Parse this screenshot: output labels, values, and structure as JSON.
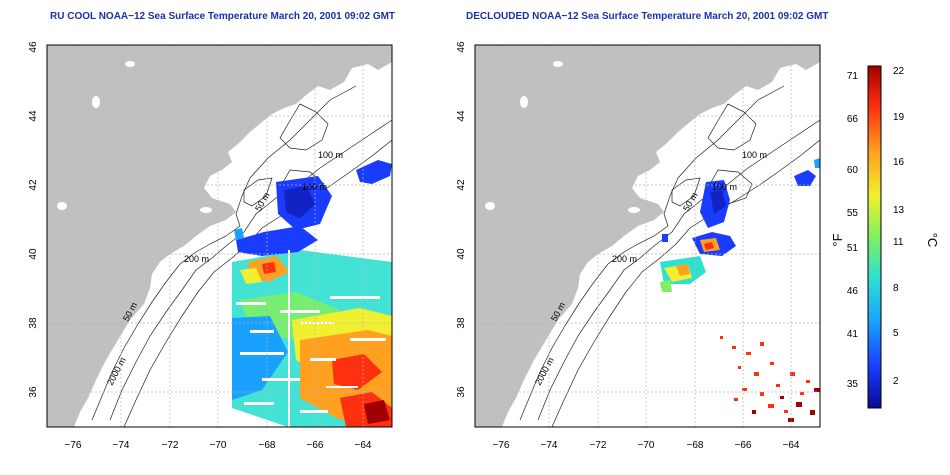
{
  "titles": {
    "left": "RU COOL NOAA−12 Sea Surface Temperature March 20, 2001 09:02 GMT",
    "right": "DECLOUDED NOAA−12 Sea Surface Temperature March 20, 2001 09:02 GMT"
  },
  "axes": {
    "lon_ticks": [
      "−76",
      "−74",
      "−72",
      "−70",
      "−68",
      "−66",
      "−64"
    ],
    "lat_ticks": [
      "36",
      "38",
      "40",
      "42",
      "44",
      "46"
    ]
  },
  "contour_labels": {
    "m100": "100 m",
    "m50": "50 m",
    "m200": "200 m",
    "m2000": "2000 m"
  },
  "colorbar": {
    "fahrenheit_label": "°F",
    "celsius_label": "°C",
    "fahrenheit_ticks": [
      "35",
      "41",
      "46",
      "51",
      "55",
      "60",
      "66",
      "71"
    ],
    "celsius_ticks": [
      "2",
      "5",
      "8",
      "11",
      "13",
      "16",
      "19",
      "22"
    ],
    "colors": [
      "#0a0a8c",
      "#1a3cff",
      "#1aa0ff",
      "#2ee0d0",
      "#80f060",
      "#f0f030",
      "#ffa020",
      "#ff3010",
      "#a00000"
    ]
  },
  "colors": {
    "land": "#c0c0c0",
    "water": "#ffffff",
    "grid": "#b4b4b4",
    "title": "#1c2fb0"
  }
}
